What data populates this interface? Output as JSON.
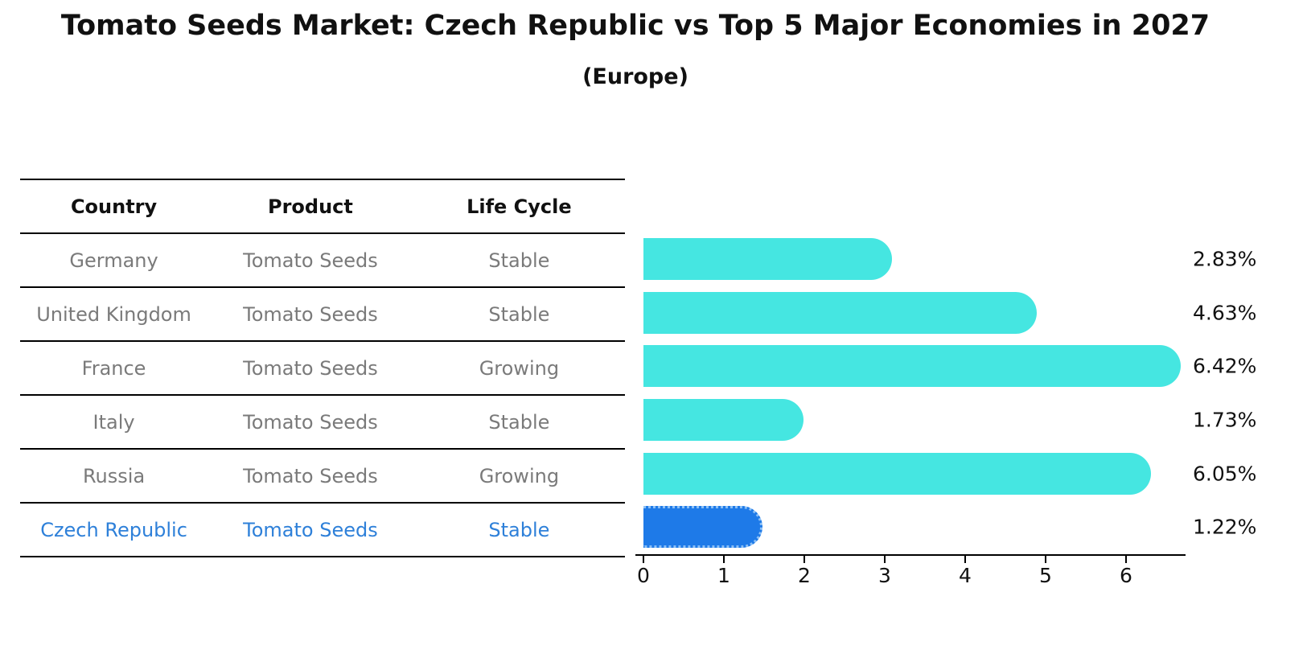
{
  "title": "Tomato Seeds Market: Czech Republic vs Top 5 Major Economies in 2027",
  "subtitle": "(Europe)",
  "table": {
    "headers": [
      "Country",
      "Product",
      "Life Cycle"
    ],
    "rows": [
      {
        "country": "Germany",
        "product": "Tomato Seeds",
        "life_cycle": "Stable"
      },
      {
        "country": "United Kingdom",
        "product": "Tomato Seeds",
        "life_cycle": "Stable"
      },
      {
        "country": "France",
        "product": "Tomato Seeds",
        "life_cycle": "Growing"
      },
      {
        "country": "Italy",
        "product": "Tomato Seeds",
        "life_cycle": "Stable"
      },
      {
        "country": "Russia",
        "product": "Tomato Seeds",
        "life_cycle": "Growing"
      },
      {
        "country": "Czech Republic",
        "product": "Tomato Seeds",
        "life_cycle": "Stable"
      }
    ]
  },
  "chart_data": {
    "type": "bar",
    "orientation": "horizontal",
    "title": "Tomato Seeds Market: Czech Republic vs Top 5 Major Economies in 2027",
    "subtitle": "(Europe)",
    "categories": [
      "Germany",
      "United Kingdom",
      "France",
      "Italy",
      "Russia",
      "Czech Republic"
    ],
    "values": [
      2.83,
      4.63,
      6.42,
      1.73,
      6.05,
      1.22
    ],
    "value_labels": [
      "2.83%",
      "4.63%",
      "6.42%",
      "1.73%",
      "6.05%",
      "1.22%"
    ],
    "x_ticks": [
      "0",
      "1",
      "2",
      "3",
      "4",
      "5",
      "6"
    ],
    "xlim": [
      0,
      6.75
    ],
    "grid": false,
    "legend": false,
    "bar_color": "#45E6E1",
    "highlight_index": 5,
    "highlight_color": "#1E7AE8",
    "highlight_text_color": "#2E80D9",
    "highlight_bar_style": "dotted-edge"
  }
}
